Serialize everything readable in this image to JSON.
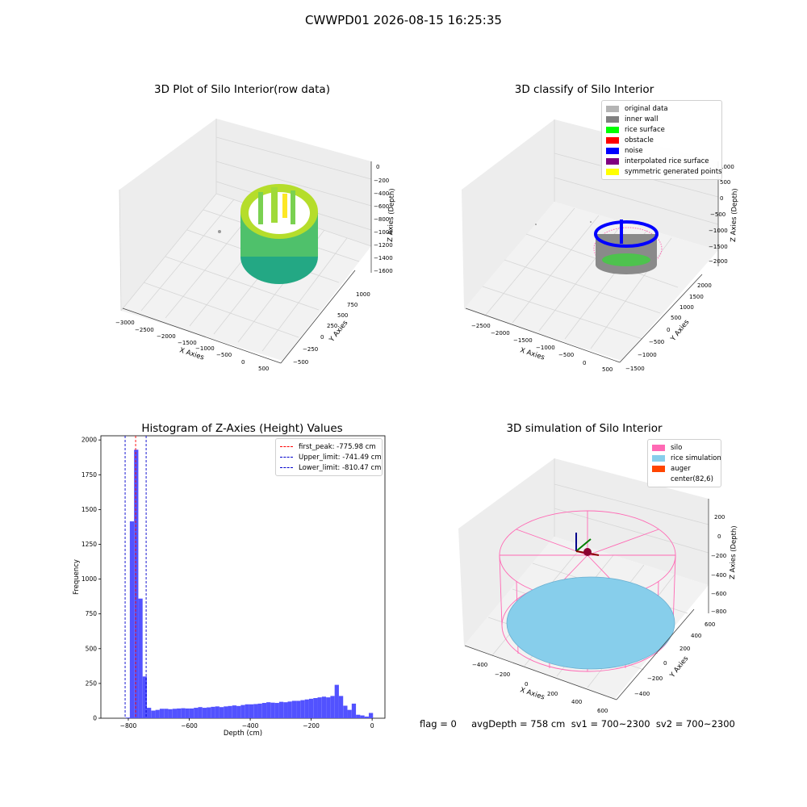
{
  "figure": {
    "title": "CWWPD01 2026-08-15 16:25:35"
  },
  "status_line": "flag = 0     avgDepth = 758 cm  sv1 = 700~2300  sv2 = 700~2300",
  "colors": {
    "histogram_bar": "#5252ff",
    "first_peak_line": "#ff0000",
    "limit_lines": "#0000cc",
    "silo_wire": "#ff69b4",
    "rice_simulation": "#87ceeb",
    "auger": "#ff4500"
  },
  "chart_data": [
    {
      "type": "scatter",
      "title": "3D Plot of Silo Interior(row data)",
      "xlabel": "X Axies",
      "ylabel": "Y Axies",
      "zlabel": "Z Axies (Depth)",
      "xticks": [
        "−3000",
        "−2500",
        "−2000",
        "−1500",
        "−1000",
        "−500",
        "0",
        "500"
      ],
      "yticks": [
        "−500",
        "−250",
        "0",
        "250",
        "500",
        "750",
        "1000"
      ],
      "zticks": [
        "0",
        "−200",
        "−400",
        "−600",
        "−800",
        "−1000",
        "−1200",
        "−1400",
        "−1600"
      ],
      "colormap": "viridis",
      "shape": "cylindrical wall of points colored by depth, top rim yellow-green, bottom teal"
    },
    {
      "type": "scatter",
      "title": "3D classify of Silo Interior",
      "xlabel": "X Axies",
      "ylabel": "Y Axies",
      "zlabel": "Z Axies (Depth)",
      "xticks": [
        "−2500",
        "−2000",
        "−1500",
        "−1000",
        "−500",
        "0",
        "500"
      ],
      "yticks": [
        "−1500",
        "−1000",
        "−500",
        "0",
        "500",
        "1000",
        "1500",
        "2000"
      ],
      "zticks": [
        "1000",
        "500",
        "0",
        "−500",
        "−1000",
        "−1500",
        "−2000"
      ],
      "legend": [
        {
          "label": "original data",
          "color": "#b4b4b4"
        },
        {
          "label": "inner wall",
          "color": "#808080"
        },
        {
          "label": "rice surface",
          "color": "#00ff00"
        },
        {
          "label": "obstacle",
          "color": "#ff0000"
        },
        {
          "label": "noise",
          "color": "#0000ff"
        },
        {
          "label": "interpolated rice surface",
          "color": "#800080"
        },
        {
          "label": "symmetric generated points",
          "color": "#ffff00"
        }
      ]
    },
    {
      "type": "bar",
      "title": "Histogram of Z-Axies (Height) Values",
      "xlabel": "Depth (cm)",
      "ylabel": "Frequency",
      "xlim": [
        -890,
        42
      ],
      "ylim": [
        0,
        2030
      ],
      "xticks": [
        -800,
        -600,
        -400,
        -200,
        0
      ],
      "xtick_labels": [
        "−800",
        "−600",
        "−400",
        "−200",
        "0"
      ],
      "yticks": [
        0,
        250,
        500,
        750,
        1000,
        1250,
        1500,
        1750,
        2000
      ],
      "bin_width": 13.9,
      "bins": [
        {
          "x0": -809,
          "v": 5
        },
        {
          "x0": -795,
          "v": 1415
        },
        {
          "x0": -781,
          "v": 1930
        },
        {
          "x0": -767,
          "v": 860
        },
        {
          "x0": -753,
          "v": 300
        },
        {
          "x0": -739,
          "v": 75
        },
        {
          "x0": -725,
          "v": 55
        },
        {
          "x0": -711,
          "v": 60
        },
        {
          "x0": -697,
          "v": 68
        },
        {
          "x0": -683,
          "v": 68
        },
        {
          "x0": -669,
          "v": 65
        },
        {
          "x0": -655,
          "v": 68
        },
        {
          "x0": -641,
          "v": 70
        },
        {
          "x0": -627,
          "v": 72
        },
        {
          "x0": -613,
          "v": 70
        },
        {
          "x0": -599,
          "v": 70
        },
        {
          "x0": -585,
          "v": 75
        },
        {
          "x0": -571,
          "v": 80
        },
        {
          "x0": -557,
          "v": 75
        },
        {
          "x0": -543,
          "v": 78
        },
        {
          "x0": -529,
          "v": 82
        },
        {
          "x0": -515,
          "v": 85
        },
        {
          "x0": -501,
          "v": 80
        },
        {
          "x0": -487,
          "v": 85
        },
        {
          "x0": -473,
          "v": 88
        },
        {
          "x0": -459,
          "v": 92
        },
        {
          "x0": -445,
          "v": 88
        },
        {
          "x0": -431,
          "v": 95
        },
        {
          "x0": -417,
          "v": 100
        },
        {
          "x0": -403,
          "v": 100
        },
        {
          "x0": -389,
          "v": 102
        },
        {
          "x0": -375,
          "v": 105
        },
        {
          "x0": -361,
          "v": 110
        },
        {
          "x0": -347,
          "v": 115
        },
        {
          "x0": -333,
          "v": 112
        },
        {
          "x0": -319,
          "v": 110
        },
        {
          "x0": -305,
          "v": 118
        },
        {
          "x0": -291,
          "v": 115
        },
        {
          "x0": -277,
          "v": 120
        },
        {
          "x0": -263,
          "v": 125
        },
        {
          "x0": -249,
          "v": 125
        },
        {
          "x0": -235,
          "v": 130
        },
        {
          "x0": -221,
          "v": 135
        },
        {
          "x0": -207,
          "v": 140
        },
        {
          "x0": -193,
          "v": 145
        },
        {
          "x0": -179,
          "v": 150
        },
        {
          "x0": -165,
          "v": 155
        },
        {
          "x0": -151,
          "v": 150
        },
        {
          "x0": -137,
          "v": 160
        },
        {
          "x0": -123,
          "v": 240
        },
        {
          "x0": -109,
          "v": 160
        },
        {
          "x0": -95,
          "v": 90
        },
        {
          "x0": -81,
          "v": 60
        },
        {
          "x0": -67,
          "v": 105
        },
        {
          "x0": -53,
          "v": 25
        },
        {
          "x0": -39,
          "v": 20
        },
        {
          "x0": -25,
          "v": 12
        },
        {
          "x0": -11,
          "v": 38
        }
      ],
      "lines": [
        {
          "label": "first_peak: -775.98 cm",
          "x": -775.98,
          "color": "#ff0000"
        },
        {
          "label": "Upper_limit: -741.49 cm",
          "x": -741.49,
          "color": "#0000cc"
        },
        {
          "label": "Lower_limit: -810.47 cm",
          "x": -810.47,
          "color": "#0000cc"
        }
      ]
    },
    {
      "type": "scatter",
      "title": "3D simulation of Silo Interior",
      "xlabel": "X Axies",
      "ylabel": "Y Axies",
      "zlabel": "Z Axies (Depth)",
      "xticks": [
        "−400",
        "−200",
        "0",
        "200",
        "400",
        "600"
      ],
      "yticks": [
        "−400",
        "−200",
        "0",
        "200",
        "400",
        "600"
      ],
      "zticks": [
        "200",
        "0",
        "−200",
        "−400",
        "−600",
        "−800"
      ],
      "legend": [
        {
          "label": "silo",
          "color": "#ff69b4"
        },
        {
          "label": "rice simulation",
          "color": "#87ceeb"
        },
        {
          "label": "auger",
          "color": "#ff4500"
        },
        {
          "label": "center(82,6)",
          "color": ""
        }
      ]
    }
  ]
}
